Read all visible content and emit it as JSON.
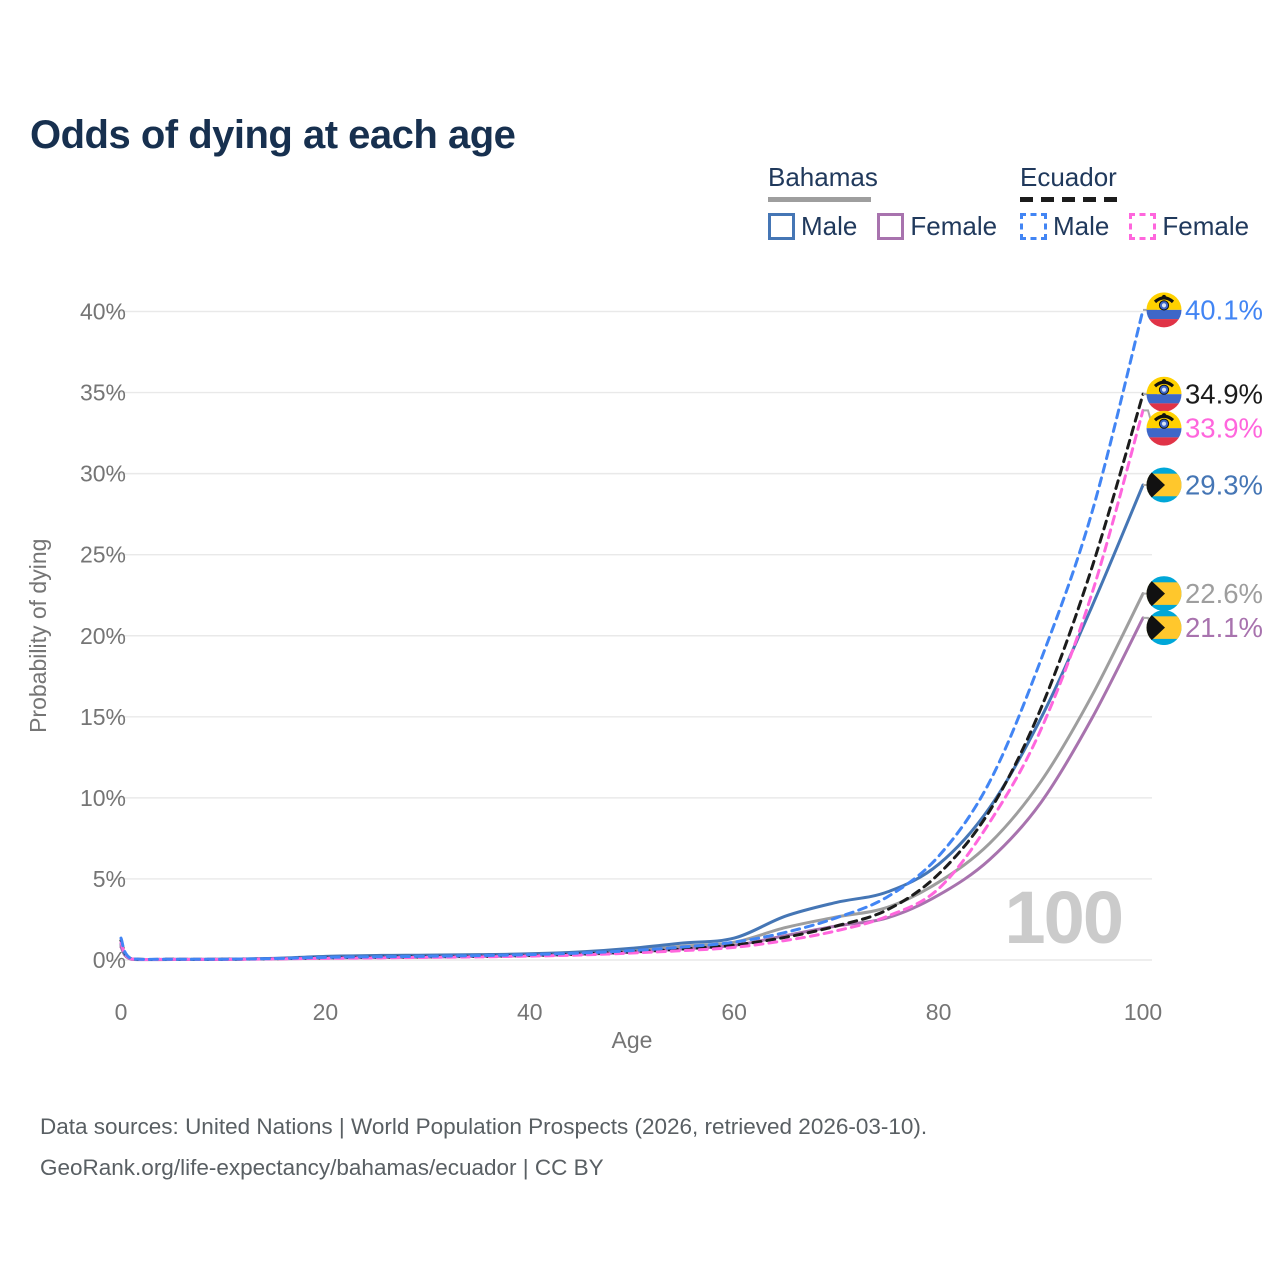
{
  "title": "Odds of dying at each age",
  "legend": {
    "groups": [
      {
        "country": "Bahamas",
        "style": "solid",
        "items": [
          {
            "label": "Male"
          },
          {
            "label": "Female"
          }
        ]
      },
      {
        "country": "Ecuador",
        "style": "dashed",
        "items": [
          {
            "label": "Male"
          },
          {
            "label": "Female"
          }
        ]
      }
    ]
  },
  "watermark": "100",
  "footer": {
    "line1": "Data sources: United Nations | World Population Prospects (2026, retrieved 2026-03-10).",
    "line2": "GeoRank.org/life-expectancy/bahamas/ecuador | CC BY"
  },
  "colors": {
    "title_text": "#17304f",
    "legend_text": "#20395c",
    "axis_text": "#757575",
    "gridline": "#e9e9e9",
    "watermark": "#cbcbcb",
    "footer_text": "#595f63",
    "connector": "#aaaaaa",
    "bahamas_male": "#4576b5",
    "bahamas_female": "#a873ae",
    "bahamas_both": "#9e9e9e",
    "ecuador_male": "#4285f4",
    "ecuador_female": "#ff66dd",
    "ecuador_both": "#1c1c1c",
    "flag_bahamas_aqua": "#00a7d8",
    "flag_bahamas_gold": "#ffc72c",
    "flag_bahamas_black": "#111111",
    "flag_ecuador_yellow": "#ffd100",
    "flag_ecuador_blue": "#3e67c8",
    "flag_ecuador_red": "#e03347"
  },
  "chart_data": {
    "type": "line",
    "title": "Odds of dying at each age",
    "xlabel": "Age",
    "ylabel": "Probability of dying",
    "xlim": [
      0,
      100
    ],
    "ylim_percent": [
      0,
      40
    ],
    "x_ticks": [
      0,
      20,
      40,
      60,
      80,
      100
    ],
    "y_ticks_percent": [
      0,
      5,
      10,
      15,
      20,
      25,
      30,
      35,
      40
    ],
    "grid": "horizontal",
    "legend_position": "top-right",
    "ages": [
      0,
      1,
      5,
      10,
      15,
      20,
      25,
      30,
      35,
      40,
      45,
      50,
      55,
      60,
      65,
      70,
      75,
      80,
      85,
      90,
      95,
      100
    ],
    "series": [
      {
        "name": "Bahamas (both sexes)",
        "country": "Bahamas",
        "sex": "both",
        "style": "solid",
        "color": "#9e9e9e",
        "flag": "bahamas",
        "end_value": 22.6,
        "end_label": "22.6%",
        "values_percent": [
          0.9,
          0.06,
          0.035,
          0.045,
          0.09,
          0.17,
          0.21,
          0.24,
          0.27,
          0.32,
          0.42,
          0.6,
          0.85,
          1.1,
          2.0,
          2.65,
          3.25,
          4.8,
          7.2,
          11.0,
          16.3,
          22.6
        ]
      },
      {
        "name": "Bahamas Female",
        "country": "Bahamas",
        "sex": "female",
        "style": "solid",
        "color": "#a873ae",
        "flag": "bahamas",
        "end_value": 21.1,
        "end_label": "21.1%",
        "values_percent": [
          0.8,
          0.05,
          0.03,
          0.04,
          0.07,
          0.12,
          0.15,
          0.18,
          0.22,
          0.27,
          0.35,
          0.48,
          0.68,
          0.9,
          1.5,
          2.1,
          2.6,
          4.0,
          6.2,
          9.7,
          14.9,
          21.1
        ]
      },
      {
        "name": "Bahamas Male",
        "country": "Bahamas",
        "sex": "male",
        "style": "solid",
        "color": "#4576b5",
        "flag": "bahamas",
        "end_value": 29.3,
        "end_label": "29.3%",
        "values_percent": [
          1.0,
          0.07,
          0.04,
          0.05,
          0.1,
          0.22,
          0.28,
          0.3,
          0.33,
          0.38,
          0.5,
          0.72,
          1.05,
          1.35,
          2.7,
          3.55,
          4.2,
          5.9,
          9.4,
          14.9,
          21.8,
          29.3
        ]
      },
      {
        "name": "Ecuador (both sexes)",
        "country": "Ecuador",
        "sex": "both",
        "style": "dashed",
        "color": "#1c1c1c",
        "flag": "ecuador",
        "end_value": 34.9,
        "end_label": "34.9%",
        "values_percent": [
          1.2,
          0.08,
          0.045,
          0.045,
          0.08,
          0.13,
          0.17,
          0.2,
          0.23,
          0.28,
          0.37,
          0.5,
          0.68,
          0.92,
          1.4,
          2.1,
          3.1,
          5.3,
          9.2,
          15.5,
          24.2,
          34.9
        ]
      },
      {
        "name": "Ecuador Female",
        "country": "Ecuador",
        "sex": "female",
        "style": "dashed",
        "color": "#ff66dd",
        "flag": "ecuador",
        "end_value": 33.9,
        "end_label": "33.9%",
        "values_percent": [
          1.05,
          0.07,
          0.04,
          0.04,
          0.07,
          0.1,
          0.13,
          0.16,
          0.19,
          0.24,
          0.31,
          0.43,
          0.58,
          0.78,
          1.2,
          1.8,
          2.7,
          4.4,
          8.5,
          14.2,
          22.6,
          33.9
        ]
      },
      {
        "name": "Ecuador Male",
        "country": "Ecuador",
        "sex": "male",
        "style": "dashed",
        "color": "#4285f4",
        "flag": "ecuador",
        "end_value": 40.1,
        "end_label": "40.1%",
        "values_percent": [
          1.35,
          0.09,
          0.05,
          0.05,
          0.09,
          0.16,
          0.2,
          0.23,
          0.27,
          0.33,
          0.43,
          0.58,
          0.8,
          1.1,
          1.7,
          2.6,
          3.9,
          6.4,
          11.0,
          18.5,
          27.6,
          40.1
        ]
      }
    ]
  }
}
